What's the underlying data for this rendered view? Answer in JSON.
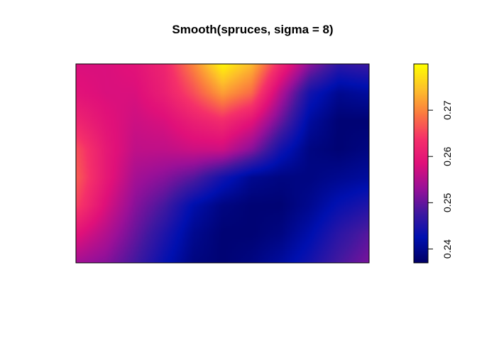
{
  "chart_data": {
    "type": "heatmap",
    "title": "Smooth(spruces, sigma = 8)",
    "xlabel": "",
    "ylabel": "",
    "axes_drawn": false,
    "value_range": [
      0.237,
      0.28
    ],
    "colorbar": {
      "position": "right",
      "orientation": "vertical",
      "ticks": [
        0.24,
        0.25,
        0.26,
        0.27
      ],
      "tick_labels": [
        "0.24",
        "0.25",
        "0.26",
        "0.27"
      ],
      "colors": [
        "#000066",
        "#0010b0",
        "#4018a0",
        "#9a1098",
        "#e0107a",
        "#f5306a",
        "#fb7a40",
        "#fdc02a",
        "#ffff00"
      ]
    },
    "grid": {
      "description": "smoothed intensity field, 11 columns (west to east) by 8 rows (north to south)",
      "columns": 11,
      "rows": 8,
      "z": [
        [
          0.258,
          0.258,
          0.259,
          0.262,
          0.27,
          0.279,
          0.274,
          0.262,
          0.252,
          0.246,
          0.247
        ],
        [
          0.259,
          0.258,
          0.258,
          0.261,
          0.266,
          0.272,
          0.268,
          0.255,
          0.244,
          0.24,
          0.241
        ],
        [
          0.262,
          0.259,
          0.257,
          0.258,
          0.261,
          0.263,
          0.259,
          0.25,
          0.241,
          0.238,
          0.238
        ],
        [
          0.266,
          0.26,
          0.256,
          0.256,
          0.257,
          0.257,
          0.252,
          0.244,
          0.239,
          0.238,
          0.239
        ],
        [
          0.267,
          0.26,
          0.254,
          0.252,
          0.249,
          0.244,
          0.24,
          0.239,
          0.239,
          0.24,
          0.241
        ],
        [
          0.265,
          0.258,
          0.252,
          0.248,
          0.242,
          0.239,
          0.238,
          0.238,
          0.24,
          0.243,
          0.245
        ],
        [
          0.259,
          0.255,
          0.25,
          0.245,
          0.24,
          0.238,
          0.238,
          0.239,
          0.242,
          0.246,
          0.249
        ],
        [
          0.254,
          0.252,
          0.248,
          0.243,
          0.239,
          0.238,
          0.239,
          0.241,
          0.244,
          0.248,
          0.251
        ]
      ]
    }
  }
}
